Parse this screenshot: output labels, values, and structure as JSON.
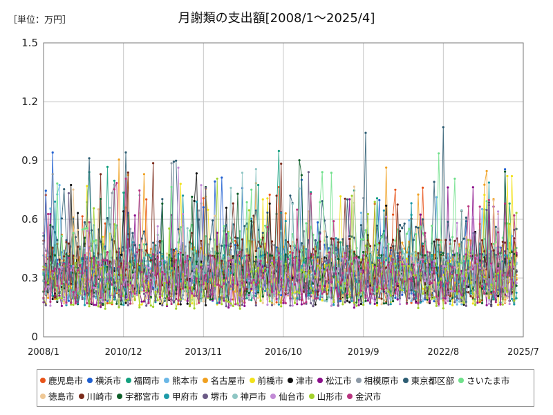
{
  "unit_label": "［単位：万円］",
  "chart_data": {
    "type": "line",
    "title": "月謝類の支出額[2008/1～2025/4]",
    "xlabel": "",
    "ylabel": "",
    "x_range": [
      "2008-01",
      "2025-07"
    ],
    "x_ticks": [
      "2008/1",
      "2010/12",
      "2013/11",
      "2016/10",
      "2019/9",
      "2022/8",
      "2025/7"
    ],
    "ylim": [
      0,
      1.5
    ],
    "y_ticks": [
      "0",
      "0.3",
      "0.6",
      "0.9",
      "1.2",
      "1.5"
    ],
    "grid": true,
    "legend_position": "bottom",
    "series": [
      {
        "name": "鹿児島市",
        "color": "#e8541a",
        "base": 0.3
      },
      {
        "name": "横浜市",
        "color": "#1f5fd1",
        "base": 0.33
      },
      {
        "name": "福岡市",
        "color": "#13a07f",
        "base": 0.34
      },
      {
        "name": "熊本市",
        "color": "#6ab7e6",
        "base": 0.3
      },
      {
        "name": "名古屋市",
        "color": "#f0a020",
        "base": 0.34
      },
      {
        "name": "前橋市",
        "color": "#f2e21a",
        "base": 0.28
      },
      {
        "name": "津市",
        "color": "#111111",
        "base": 0.29
      },
      {
        "name": "松江市",
        "color": "#8b0f8b",
        "base": 0.27
      },
      {
        "name": "相模原市",
        "color": "#8c99a6",
        "base": 0.33
      },
      {
        "name": "東京都区部",
        "color": "#2d5d73",
        "base": 0.42
      },
      {
        "name": "さいたま市",
        "color": "#6fe08a",
        "base": 0.4
      },
      {
        "name": "徳島市",
        "color": "#efc896",
        "base": 0.3
      },
      {
        "name": "川崎市",
        "color": "#7a2a1a",
        "base": 0.35
      },
      {
        "name": "宇都宮市",
        "color": "#0f5f2a",
        "base": 0.3
      },
      {
        "name": "甲府市",
        "color": "#1c9aa8",
        "base": 0.29
      },
      {
        "name": "堺市",
        "color": "#6b5a86",
        "base": 0.28
      },
      {
        "name": "神戸市",
        "color": "#8fc6c4",
        "base": 0.32
      },
      {
        "name": "仙台市",
        "color": "#c28ad6",
        "base": 0.28
      },
      {
        "name": "山形市",
        "color": "#a2d12a",
        "base": 0.26
      },
      {
        "name": "金沢市",
        "color": "#b8347f",
        "base": 0.3
      }
    ]
  }
}
